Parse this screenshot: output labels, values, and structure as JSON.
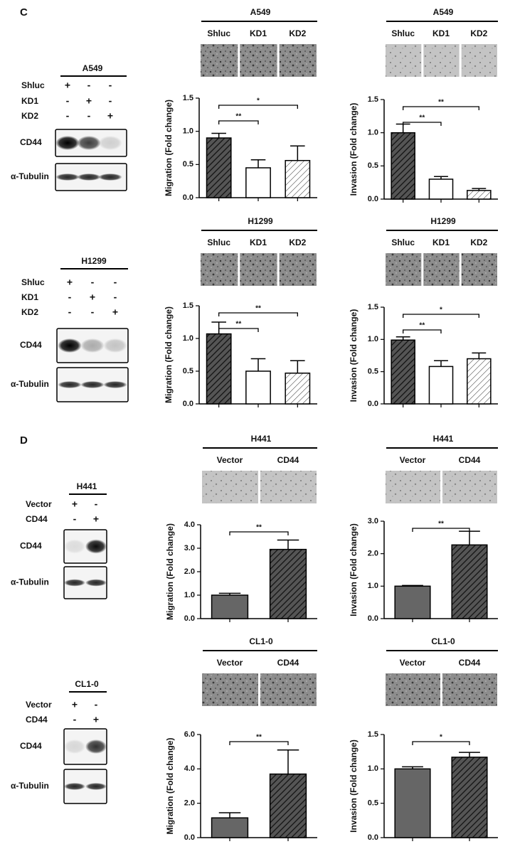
{
  "panels": [
    "C",
    "D"
  ],
  "blots": [
    {
      "title": "A549",
      "rows": [
        {
          "label": "Shluc",
          "signs": [
            "+",
            "-",
            "-"
          ]
        },
        {
          "label": "KD1",
          "signs": [
            "-",
            "+",
            "-"
          ]
        },
        {
          "label": "KD2",
          "signs": [
            "-",
            "-",
            "+"
          ]
        }
      ],
      "bands": [
        "CD44",
        "α-Tubulin"
      ]
    },
    {
      "title": "H1299",
      "rows": [
        {
          "label": "Shluc",
          "signs": [
            "+",
            "-",
            "-"
          ]
        },
        {
          "label": "KD1",
          "signs": [
            "-",
            "+",
            "-"
          ]
        },
        {
          "label": "KD2",
          "signs": [
            "-",
            "-",
            "+"
          ]
        }
      ],
      "bands": [
        "CD44",
        "α-Tubulin"
      ]
    },
    {
      "title": "H441",
      "rows": [
        {
          "label": "Vector",
          "signs": [
            "+",
            "-"
          ]
        },
        {
          "label": "CD44",
          "signs": [
            "-",
            "+"
          ]
        }
      ],
      "bands": [
        "CD44",
        "α-Tubulin"
      ]
    },
    {
      "title": "CL1-0",
      "rows": [
        {
          "label": "Vector",
          "signs": [
            "+",
            "-"
          ]
        },
        {
          "label": "CD44",
          "signs": [
            "-",
            "+"
          ]
        }
      ],
      "bands": [
        "CD44",
        "α-Tubulin"
      ]
    }
  ],
  "chart_data": [
    {
      "type": "bar",
      "title": "A549",
      "ylabel": "Migration (Fold change)",
      "categories": [
        "Shluc",
        "KD1",
        "KD2"
      ],
      "values": [
        0.9,
        0.45,
        0.56
      ],
      "errors": [
        0.07,
        0.12,
        0.22
      ],
      "bar_styles": [
        "dark-hatch",
        "white",
        "light-hatch"
      ],
      "ylim": [
        0,
        1.5
      ],
      "yticks": [
        {
          "value": 0,
          "label": "0.0"
        },
        {
          "value": 0.5,
          "label": "0.5"
        },
        {
          "value": 1,
          "label": "1.0"
        },
        {
          "value": 1.5,
          "label": "1.5"
        }
      ],
      "annotations": [
        {
          "text": "**",
          "pair": [
            "Shluc",
            "KD1"
          ]
        },
        {
          "text": "*",
          "pair": [
            "Shluc",
            "KD2"
          ]
        }
      ]
    },
    {
      "type": "bar",
      "title": "A549",
      "ylabel": "Invasion (Fold change)",
      "categories": [
        "Shluc",
        "KD1",
        "KD2"
      ],
      "values": [
        1.0,
        0.3,
        0.13
      ],
      "errors": [
        0.13,
        0.04,
        0.03
      ],
      "bar_styles": [
        "dark-hatch",
        "white",
        "light-hatch"
      ],
      "ylim": [
        0,
        1.5
      ],
      "yticks": [
        {
          "value": 0,
          "label": "0.0"
        },
        {
          "value": 0.5,
          "label": "0.5"
        },
        {
          "value": 1,
          "label": "1.0"
        },
        {
          "value": 1.5,
          "label": "1.5"
        }
      ],
      "annotations": [
        {
          "text": "**",
          "pair": [
            "Shluc",
            "KD1"
          ]
        },
        {
          "text": "**",
          "pair": [
            "Shluc",
            "KD2"
          ]
        }
      ]
    },
    {
      "type": "bar",
      "title": "H1299",
      "ylabel": "Migration (Fold change)",
      "categories": [
        "Shluc",
        "KD1",
        "KD2"
      ],
      "values": [
        1.07,
        0.5,
        0.47
      ],
      "errors": [
        0.18,
        0.19,
        0.19
      ],
      "bar_styles": [
        "dark-hatch",
        "white",
        "light-hatch"
      ],
      "ylim": [
        0,
        1.5
      ],
      "yticks": [
        {
          "value": 0,
          "label": "0.0"
        },
        {
          "value": 0.5,
          "label": "0.5"
        },
        {
          "value": 1,
          "label": "1.0"
        },
        {
          "value": 1.5,
          "label": "1.5"
        }
      ],
      "annotations": [
        {
          "text": "**",
          "pair": [
            "Shluc",
            "KD1"
          ]
        },
        {
          "text": "**",
          "pair": [
            "Shluc",
            "KD2"
          ]
        }
      ]
    },
    {
      "type": "bar",
      "title": "H1299",
      "ylabel": "Invasion (Fold change)",
      "categories": [
        "Shluc",
        "KD1",
        "KD2"
      ],
      "values": [
        0.99,
        0.58,
        0.7
      ],
      "errors": [
        0.05,
        0.09,
        0.09
      ],
      "bar_styles": [
        "dark-hatch",
        "white",
        "light-hatch"
      ],
      "ylim": [
        0,
        1.5
      ],
      "yticks": [
        {
          "value": 0,
          "label": "0.0"
        },
        {
          "value": 0.5,
          "label": "0.5"
        },
        {
          "value": 1,
          "label": "1.0"
        },
        {
          "value": 1.5,
          "label": "1.5"
        }
      ],
      "annotations": [
        {
          "text": "**",
          "pair": [
            "Shluc",
            "KD1"
          ]
        },
        {
          "text": "*",
          "pair": [
            "Shluc",
            "KD2"
          ]
        }
      ]
    },
    {
      "type": "bar",
      "title": "H441",
      "ylabel": "Migration (Fold change)",
      "categories": [
        "Vector",
        "CD44"
      ],
      "values": [
        1.0,
        2.95
      ],
      "errors": [
        0.08,
        0.4
      ],
      "bar_styles": [
        "gray",
        "dark-hatch"
      ],
      "ylim": [
        0,
        4
      ],
      "yticks": [
        {
          "value": 0,
          "label": "0.0"
        },
        {
          "value": 1,
          "label": "1.0"
        },
        {
          "value": 2,
          "label": "2.0"
        },
        {
          "value": 3,
          "label": "3.0"
        },
        {
          "value": 4,
          "label": "4.0"
        }
      ],
      "annotations": [
        {
          "text": "**",
          "pair": [
            "Vector",
            "CD44"
          ]
        }
      ]
    },
    {
      "type": "bar",
      "title": "H441",
      "ylabel": "Invasion (Fold change)",
      "categories": [
        "Vector",
        "CD44"
      ],
      "values": [
        1.0,
        2.27
      ],
      "errors": [
        0.02,
        0.42
      ],
      "bar_styles": [
        "gray",
        "dark-hatch"
      ],
      "ylim": [
        0,
        3
      ],
      "yticks": [
        {
          "value": 0,
          "label": "0.0"
        },
        {
          "value": 1,
          "label": "1.0"
        },
        {
          "value": 2,
          "label": "2.0"
        },
        {
          "value": 3,
          "label": "3.0"
        }
      ],
      "annotations": [
        {
          "text": "**",
          "pair": [
            "Vector",
            "CD44"
          ]
        }
      ]
    },
    {
      "type": "bar",
      "title": "CL1-0",
      "ylabel": "Migration (Fold change)",
      "categories": [
        "Vector",
        "CD44"
      ],
      "values": [
        1.15,
        3.7
      ],
      "errors": [
        0.3,
        1.4
      ],
      "bar_styles": [
        "gray",
        "dark-hatch"
      ],
      "ylim": [
        0,
        6
      ],
      "yticks": [
        {
          "value": 0,
          "label": "0.0"
        },
        {
          "value": 2,
          "label": "2.0"
        },
        {
          "value": 4,
          "label": "4.0"
        },
        {
          "value": 6,
          "label": "6.0"
        }
      ],
      "annotations": [
        {
          "text": "**",
          "pair": [
            "Vector",
            "CD44"
          ]
        }
      ]
    },
    {
      "type": "bar",
      "title": "CL1-0",
      "ylabel": "Invasion (Fold change)",
      "categories": [
        "Vector",
        "CD44"
      ],
      "values": [
        1.0,
        1.17
      ],
      "errors": [
        0.03,
        0.07
      ],
      "bar_styles": [
        "gray",
        "dark-hatch"
      ],
      "ylim": [
        0,
        1.5
      ],
      "yticks": [
        {
          "value": 0,
          "label": "0.0"
        },
        {
          "value": 0.5,
          "label": "0.5"
        },
        {
          "value": 1,
          "label": "1.0"
        },
        {
          "value": 1.5,
          "label": "1.5"
        }
      ],
      "annotations": [
        {
          "text": "*",
          "pair": [
            "Vector",
            "CD44"
          ]
        }
      ]
    }
  ]
}
